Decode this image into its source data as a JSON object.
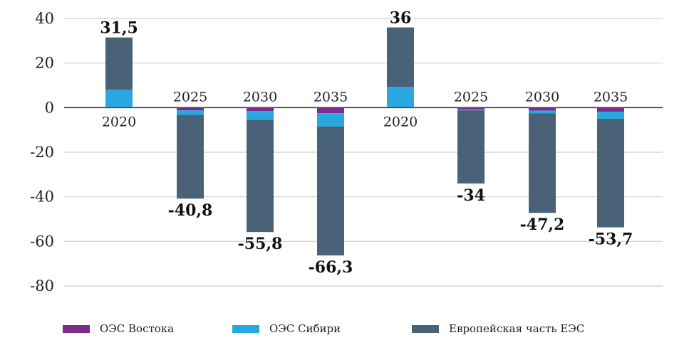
{
  "chart_data": {
    "type": "bar",
    "stacked": true,
    "categories": [
      "2020",
      "2025",
      "2030",
      "2035",
      "2020",
      "2025",
      "2030",
      "2035"
    ],
    "ylim": [
      -80,
      40
    ],
    "yticks": [
      "40",
      "20",
      "0",
      "-20",
      "-40",
      "-60",
      "-80"
    ],
    "ytick_values": [
      40,
      20,
      0,
      -20,
      -40,
      -60,
      -80
    ],
    "grid": true,
    "legend_position": "bottom",
    "series": [
      {
        "name": "ОЭС Востока",
        "color": "#7b2d8e",
        "values": [
          0.3,
          -1.2,
          -1.5,
          -2.5,
          0.3,
          -0.8,
          -1.3,
          -1.8
        ]
      },
      {
        "name": "ОЭС Сибири",
        "color": "#29a8e0",
        "values": [
          7.7,
          -2.0,
          -4.0,
          -6.0,
          9.0,
          -0.4,
          -1.2,
          -3.2
        ]
      },
      {
        "name": "Европейская часть ЕЭС",
        "color": "#4a6278",
        "values": [
          23.5,
          -37.6,
          -50.3,
          -57.8,
          26.7,
          -32.8,
          -44.7,
          -48.7
        ]
      }
    ],
    "totals": [
      "31,5",
      "-40,8",
      "-55,8",
      "-66,3",
      "36",
      "-34",
      "-47,2",
      "-53,7"
    ],
    "total_values": [
      31.5,
      -40.8,
      -55.8,
      -66.3,
      36,
      -34,
      -47.2,
      -53.7
    ]
  }
}
